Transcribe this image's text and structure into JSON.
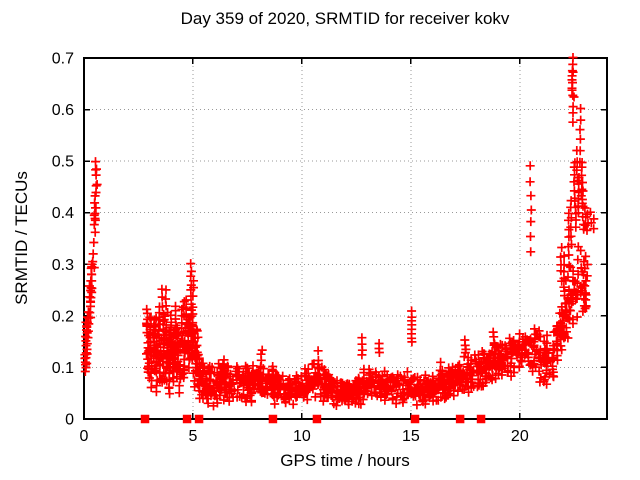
{
  "chart_data": {
    "type": "scatter",
    "title": "Day 359 of 2020, SRMTID for receiver kokv",
    "xlabel": "GPS time / hours",
    "ylabel": "SRMTID / TECUs",
    "xlim": [
      0,
      24
    ],
    "ylim": [
      0,
      0.7
    ],
    "xticks": [
      0,
      5,
      10,
      15,
      20
    ],
    "xtick_labels": [
      "0",
      "5",
      "10",
      "15",
      "20"
    ],
    "yticks": [
      0,
      0.1,
      0.2,
      0.3,
      0.4,
      0.5,
      0.6,
      0.7
    ],
    "ytick_labels": [
      "0",
      "0.1",
      "0.2",
      "0.3",
      "0.4",
      "0.5",
      "0.6",
      "0.7"
    ],
    "grid": true,
    "legend": "none",
    "marker": "plus",
    "marker_color": "#ff0000",
    "grid_color": "#999999",
    "axis_color": "#000000",
    "note": "Dense TID scatter: vertical streak 0.09-0.50 TECU near 0h, morning cluster 2.9-5.3h (0.05-0.30), low midday band 0.02-0.12, rising evening band after 17h with chains up to 0.70 at 22.4h; red squares mark y=0 flags.",
    "zero_marker_x": [
      2.8,
      4.73,
      5.28,
      8.67,
      10.69,
      15.19,
      17.26,
      18.22
    ],
    "band_count": 1380,
    "band_keypoints": [
      [
        2.85,
        0.06,
        0.2
      ],
      [
        3.1,
        0.05,
        0.2
      ],
      [
        3.5,
        0.06,
        0.23
      ],
      [
        3.9,
        0.05,
        0.22
      ],
      [
        4.3,
        0.06,
        0.23
      ],
      [
        4.7,
        0.07,
        0.25
      ],
      [
        5.0,
        0.06,
        0.22
      ],
      [
        5.35,
        0.03,
        0.13
      ],
      [
        5.6,
        0.02,
        0.11
      ],
      [
        6.0,
        0.015,
        0.105
      ],
      [
        6.4,
        0.03,
        0.125
      ],
      [
        6.8,
        0.025,
        0.115
      ],
      [
        7.2,
        0.03,
        0.11
      ],
      [
        7.6,
        0.03,
        0.105
      ],
      [
        8.0,
        0.035,
        0.115
      ],
      [
        8.4,
        0.03,
        0.115
      ],
      [
        8.8,
        0.025,
        0.1
      ],
      [
        9.2,
        0.02,
        0.085
      ],
      [
        9.6,
        0.015,
        0.08
      ],
      [
        10.0,
        0.025,
        0.095
      ],
      [
        10.4,
        0.03,
        0.11
      ],
      [
        10.8,
        0.035,
        0.115
      ],
      [
        11.2,
        0.025,
        0.095
      ],
      [
        11.6,
        0.02,
        0.085
      ],
      [
        12.0,
        0.015,
        0.075
      ],
      [
        12.4,
        0.02,
        0.085
      ],
      [
        12.8,
        0.025,
        0.1
      ],
      [
        13.2,
        0.03,
        0.108
      ],
      [
        13.6,
        0.03,
        0.1
      ],
      [
        14.0,
        0.03,
        0.1
      ],
      [
        14.4,
        0.025,
        0.095
      ],
      [
        14.8,
        0.028,
        0.095
      ],
      [
        15.2,
        0.025,
        0.09
      ],
      [
        15.6,
        0.02,
        0.085
      ],
      [
        16.0,
        0.027,
        0.09
      ],
      [
        16.4,
        0.033,
        0.1
      ],
      [
        16.8,
        0.04,
        0.11
      ],
      [
        17.2,
        0.045,
        0.12
      ],
      [
        17.6,
        0.05,
        0.135
      ],
      [
        18.0,
        0.055,
        0.13
      ],
      [
        18.4,
        0.06,
        0.14
      ],
      [
        18.8,
        0.068,
        0.15
      ],
      [
        19.2,
        0.075,
        0.16
      ],
      [
        19.6,
        0.08,
        0.17
      ],
      [
        20.0,
        0.085,
        0.18
      ],
      [
        20.4,
        0.085,
        0.19
      ],
      [
        20.8,
        0.075,
        0.185
      ],
      [
        21.1,
        0.06,
        0.17
      ],
      [
        21.35,
        0.05,
        0.16
      ],
      [
        21.6,
        0.085,
        0.2
      ],
      [
        21.85,
        0.11,
        0.24
      ],
      [
        22.1,
        0.13,
        0.28
      ],
      [
        22.35,
        0.14,
        0.32
      ],
      [
        22.6,
        0.15,
        0.35
      ],
      [
        22.85,
        0.16,
        0.36
      ],
      [
        23.0,
        0.18,
        0.33
      ],
      [
        23.15,
        0.2,
        0.3
      ]
    ],
    "chains": [
      [
        0.05,
        0.095,
        0.125,
        5
      ],
      [
        0.1,
        0.1,
        0.19,
        10
      ],
      [
        0.15,
        0.125,
        0.195,
        8
      ],
      [
        0.2,
        0.155,
        0.21,
        5
      ],
      [
        0.28,
        0.195,
        0.26,
        7
      ],
      [
        0.33,
        0.225,
        0.3,
        8
      ],
      [
        0.38,
        0.255,
        0.305,
        5
      ],
      [
        0.45,
        0.295,
        0.345,
        3
      ],
      [
        0.5,
        0.365,
        0.43,
        7
      ],
      [
        0.53,
        0.385,
        0.41,
        3
      ],
      [
        0.55,
        0.44,
        0.5,
        5
      ],
      [
        0.6,
        0.455,
        0.485,
        2
      ],
      [
        2.9,
        0.17,
        0.21,
        6
      ],
      [
        2.95,
        0.1,
        0.16,
        5
      ],
      [
        3.05,
        0.15,
        0.2,
        8
      ],
      [
        3.1,
        0.06,
        0.12,
        5
      ],
      [
        3.2,
        0.14,
        0.19,
        7
      ],
      [
        3.3,
        0.1,
        0.18,
        8
      ],
      [
        3.35,
        0.05,
        0.09,
        4
      ],
      [
        3.45,
        0.16,
        0.22,
        6
      ],
      [
        3.5,
        0.08,
        0.14,
        6
      ],
      [
        3.6,
        0.22,
        0.25,
        3
      ],
      [
        3.65,
        0.12,
        0.2,
        8
      ],
      [
        3.75,
        0.22,
        0.25,
        3
      ],
      [
        3.8,
        0.1,
        0.17,
        7
      ],
      [
        3.9,
        0.05,
        0.11,
        6
      ],
      [
        4.0,
        0.13,
        0.2,
        8
      ],
      [
        4.1,
        0.07,
        0.13,
        6
      ],
      [
        4.2,
        0.16,
        0.22,
        6
      ],
      [
        4.3,
        0.1,
        0.18,
        8
      ],
      [
        4.4,
        0.05,
        0.1,
        5
      ],
      [
        4.5,
        0.14,
        0.21,
        7
      ],
      [
        4.6,
        0.08,
        0.15,
        7
      ],
      [
        4.7,
        0.17,
        0.23,
        5
      ],
      [
        4.8,
        0.1,
        0.19,
        8
      ],
      [
        4.9,
        0.2,
        0.3,
        9
      ],
      [
        4.95,
        0.12,
        0.18,
        5
      ],
      [
        5.0,
        0.15,
        0.27,
        8
      ],
      [
        5.1,
        0.06,
        0.14,
        6
      ],
      [
        5.2,
        0.1,
        0.17,
        6
      ],
      [
        5.3,
        0.04,
        0.09,
        5
      ],
      [
        8.15,
        0.115,
        0.135,
        3
      ],
      [
        10.75,
        0.115,
        0.13,
        2
      ],
      [
        12.75,
        0.125,
        0.155,
        4
      ],
      [
        13.55,
        0.13,
        0.148,
        3
      ],
      [
        15.03,
        0.148,
        0.208,
        8
      ],
      [
        16.35,
        0.095,
        0.11,
        2
      ],
      [
        17.5,
        0.13,
        0.152,
        4
      ],
      [
        18.8,
        0.15,
        0.168,
        3
      ],
      [
        20.5,
        0.325,
        0.49,
        7
      ],
      [
        21.9,
        0.27,
        0.33,
        5
      ],
      [
        22.05,
        0.24,
        0.315,
        6
      ],
      [
        22.25,
        0.3,
        0.4,
        7
      ],
      [
        22.35,
        0.34,
        0.425,
        6
      ],
      [
        22.42,
        0.63,
        0.685,
        9
      ],
      [
        22.44,
        0.7,
        0.703,
        1
      ],
      [
        22.46,
        0.575,
        0.625,
        4
      ],
      [
        22.5,
        0.43,
        0.5,
        6
      ],
      [
        22.55,
        0.37,
        0.425,
        5
      ],
      [
        22.62,
        0.465,
        0.52,
        4
      ],
      [
        22.7,
        0.4,
        0.47,
        6
      ],
      [
        22.78,
        0.5,
        0.6,
        6
      ],
      [
        22.85,
        0.42,
        0.5,
        7
      ],
      [
        22.9,
        0.365,
        0.44,
        6
      ],
      [
        23.0,
        0.375,
        0.41,
        3
      ],
      [
        23.1,
        0.365,
        0.4,
        3
      ],
      [
        23.25,
        0.38,
        0.4,
        2
      ],
      [
        23.4,
        0.37,
        0.39,
        2
      ]
    ]
  }
}
